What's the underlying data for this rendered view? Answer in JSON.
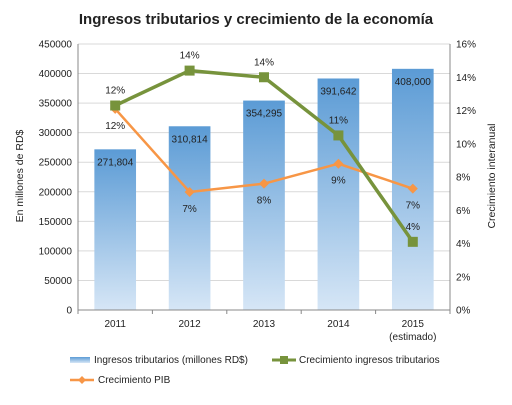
{
  "chart_data": {
    "type": "bar-line-combo",
    "title": "Ingresos tributarios y crecimiento de la economía",
    "categories": [
      "2011",
      "2012",
      "2013",
      "2014",
      "2015"
    ],
    "category_sublabels": [
      "",
      "",
      "",
      "",
      "(estimado)"
    ],
    "ylabel_left": "En millones de RD$",
    "ylabel_right": "Crecimiento interanual",
    "ylim_left": [
      0,
      450000
    ],
    "yticks_left": [
      "0",
      "50000",
      "100000",
      "150000",
      "200000",
      "250000",
      "300000",
      "350000",
      "400000",
      "450000"
    ],
    "ylim_right": [
      0,
      16
    ],
    "yticks_right": [
      "0%",
      "2%",
      "4%",
      "6%",
      "8%",
      "10%",
      "12%",
      "14%",
      "16%"
    ],
    "grid": true,
    "legend_position": "bottom",
    "series": [
      {
        "name": "Ingresos tributarios (millones RD$)",
        "kind": "bar",
        "axis": "left",
        "color": "#6FA8DC",
        "values": [
          271804,
          310814,
          354295,
          391642,
          408000
        ],
        "labels": [
          "271,804",
          "310,814",
          "354,295",
          "391,642",
          "408,000"
        ]
      },
      {
        "name": "Crecimiento ingresos tributarios",
        "kind": "line",
        "axis": "right",
        "color": "#77933C",
        "values": [
          12.3,
          14.4,
          14.0,
          10.5,
          4.1
        ],
        "labels": [
          "12%",
          "14%",
          "14%",
          "11%",
          "4%"
        ]
      },
      {
        "name": "Crecimiento PIB",
        "kind": "line",
        "axis": "right",
        "color": "#F79646",
        "values": [
          12.1,
          7.1,
          7.6,
          8.8,
          7.3
        ],
        "labels": [
          "12%",
          "7%",
          "8%",
          "9%",
          "7%"
        ]
      }
    ]
  }
}
